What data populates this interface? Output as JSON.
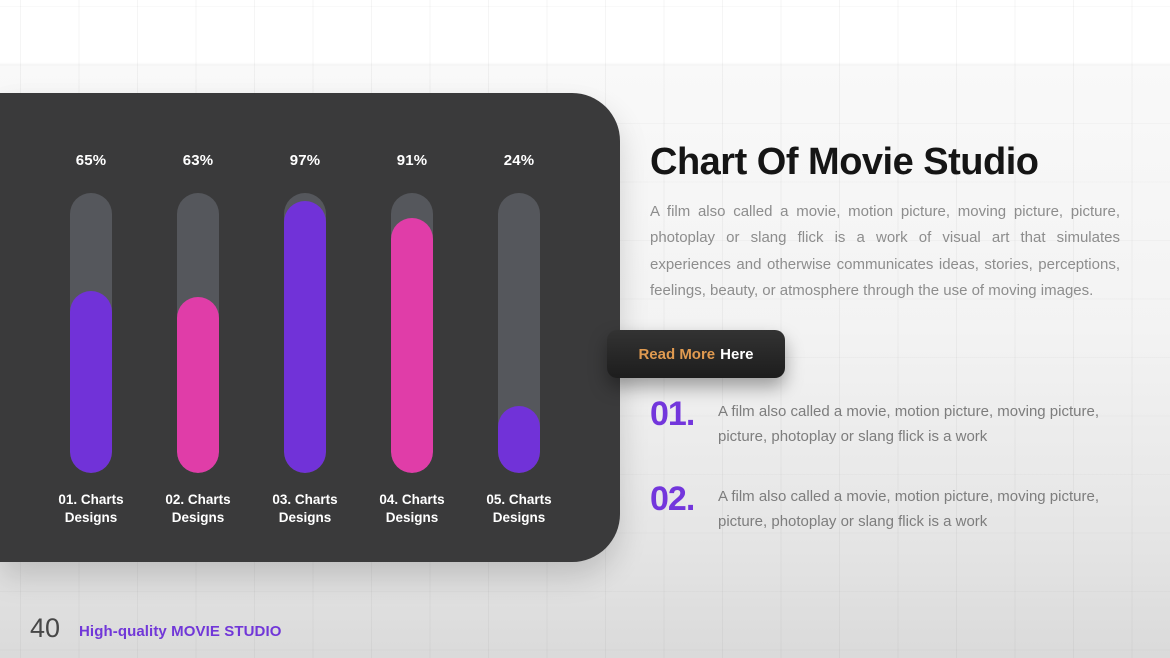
{
  "slide": {
    "title": "Chart Of Movie Studio",
    "paragraph": "A film also called a movie, motion picture, moving picture, picture, photoplay or slang flick is a work of visual art that simulates experiences and otherwise communicates ideas, stories, perceptions, feelings, beauty, or atmosphere through the use of moving images.",
    "read_more_button": {
      "highlight": "Read More",
      "rest": "Here"
    },
    "items": [
      {
        "number": "01.",
        "text": "A film also called a movie, motion picture, moving picture, picture, photoplay or slang flick is a work"
      },
      {
        "number": "02.",
        "text": "A film also called a movie, motion picture, moving picture, picture, photoplay or slang flick is a work"
      }
    ],
    "footer": {
      "page_number": "40",
      "brand": "High-quality MOVIE STUDIO"
    }
  },
  "chart_data": {
    "type": "bar",
    "orientation": "vertical",
    "title": "",
    "categories": [
      "01. Charts Designs",
      "02. Charts Designs",
      "03. Charts Designs",
      "04. Charts Designs",
      "05. Charts Designs"
    ],
    "values": [
      65,
      63,
      97,
      91,
      24
    ],
    "data_labels": [
      "65%",
      "63%",
      "97%",
      "91%",
      "24%"
    ],
    "unit": "%",
    "ylim": [
      0,
      100
    ],
    "grid": false,
    "legend": false,
    "bar_colors": [
      "#7132d8",
      "#e03da8",
      "#7132d8",
      "#e03da8",
      "#7132d8"
    ],
    "track_color": "#55575c",
    "panel_color": "#3a3a3b"
  },
  "colors": {
    "accent_purple": "#7132d8",
    "accent_pink": "#e03da8",
    "button_orange": "#e09a50",
    "footer_purple": "#7137d8",
    "title_text": "#151515",
    "body_text": "#8d8d8d"
  }
}
